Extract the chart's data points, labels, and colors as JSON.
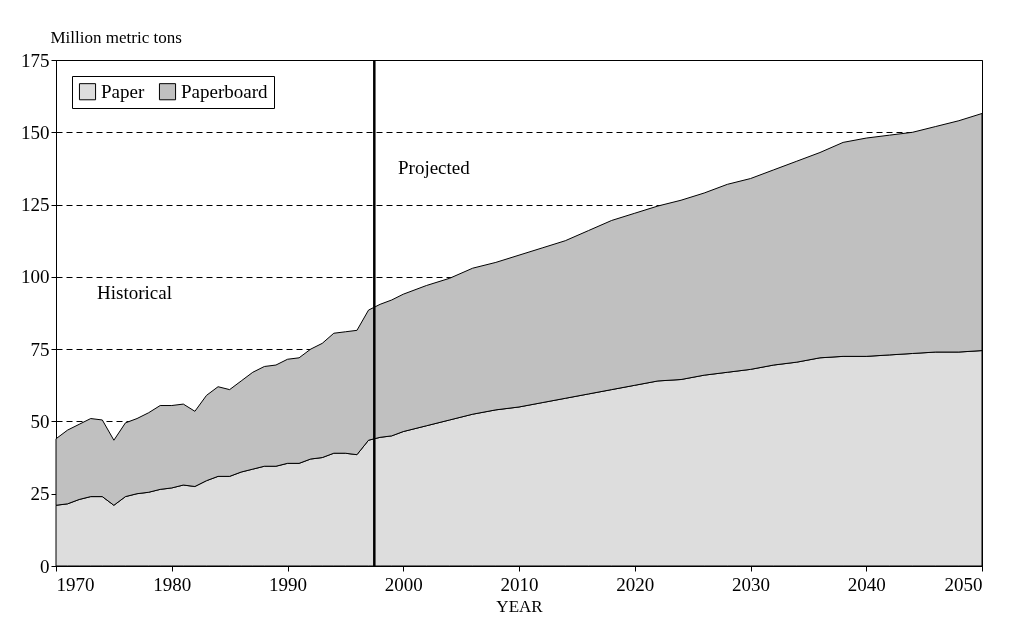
{
  "chart_data": {
    "type": "area",
    "stacked": true,
    "xlabel": "YEAR",
    "ylabel": "Million metric tons",
    "x": [
      1970,
      1971,
      1972,
      1973,
      1974,
      1975,
      1976,
      1977,
      1978,
      1979,
      1980,
      1981,
      1982,
      1983,
      1984,
      1985,
      1986,
      1987,
      1988,
      1989,
      1990,
      1991,
      1992,
      1993,
      1994,
      1995,
      1996,
      1997,
      1998,
      1999,
      2000,
      2002,
      2004,
      2006,
      2008,
      2010,
      2012,
      2014,
      2016,
      2018,
      2020,
      2022,
      2024,
      2026,
      2028,
      2030,
      2032,
      2034,
      2036,
      2038,
      2040,
      2042,
      2044,
      2046,
      2048,
      2050
    ],
    "series": [
      {
        "name": "Paper",
        "color": "#dddddd",
        "values": [
          21,
          21.5,
          23,
          24,
          24,
          21,
          24,
          25,
          25.5,
          26.5,
          27,
          28,
          27.5,
          29.5,
          31,
          31,
          32.5,
          33.5,
          34.5,
          34.5,
          35.5,
          35.5,
          37,
          37.5,
          39,
          39,
          38.5,
          43.5,
          44.5,
          45,
          46.5,
          48.5,
          50.5,
          52.5,
          54,
          55,
          56.5,
          58,
          59.5,
          61,
          62.5,
          64,
          64.5,
          66,
          67,
          68,
          69.5,
          70.5,
          72,
          72.5,
          72.5,
          73,
          73.5,
          74,
          74,
          74.5
        ]
      },
      {
        "name": "Paperboard",
        "color": "#c0c0c0",
        "values": [
          23,
          25.5,
          26,
          27,
          26.5,
          22.5,
          25.5,
          26,
          27.5,
          29,
          28.5,
          28,
          26,
          29.5,
          31,
          30,
          31.5,
          33.5,
          34.5,
          35,
          36,
          36.5,
          38,
          39.5,
          41.5,
          42,
          43,
          45,
          46,
          47,
          47.5,
          48.5,
          49,
          50.5,
          51,
          52.5,
          53.5,
          54.5,
          56.5,
          58.5,
          59.5,
          60.5,
          62,
          63,
          65,
          66,
          67.5,
          69.5,
          71,
          74,
          75.5,
          76,
          76.5,
          78,
          80,
          82
        ]
      }
    ],
    "xlim": [
      1970,
      2050
    ],
    "xticks": [
      1970,
      1980,
      1990,
      2000,
      2010,
      2020,
      2030,
      2040,
      2050
    ],
    "ylim": [
      0,
      175
    ],
    "yticks": [
      0,
      25,
      50,
      75,
      100,
      125,
      150,
      175
    ],
    "grid": "y",
    "legend": "top left",
    "ref_lines": [
      {
        "axis": "x",
        "value": 1997.5,
        "color": "#000000"
      }
    ],
    "annotations": [
      "Historical",
      "Projected"
    ]
  }
}
